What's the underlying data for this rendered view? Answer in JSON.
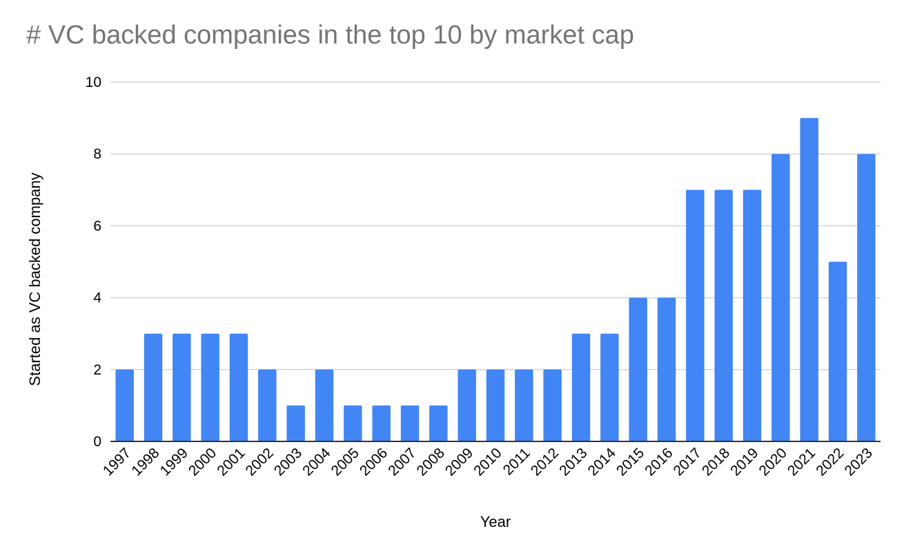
{
  "chart_data": {
    "type": "bar",
    "title": "# VC backed companies in the top 10 by market cap",
    "xlabel": "Year",
    "ylabel": "Started as VC backed company",
    "categories": [
      "1997",
      "1998",
      "1999",
      "2000",
      "2001",
      "2002",
      "2003",
      "2004",
      "2005",
      "2006",
      "2007",
      "2008",
      "2009",
      "2010",
      "2011",
      "2012",
      "2013",
      "2014",
      "2015",
      "2016",
      "2017",
      "2018",
      "2019",
      "2020",
      "2021",
      "2022",
      "2023"
    ],
    "values": [
      2,
      3,
      3,
      3,
      3,
      2,
      1,
      2,
      1,
      1,
      1,
      1,
      2,
      2,
      2,
      2,
      3,
      3,
      4,
      4,
      7,
      7,
      7,
      8,
      9,
      5,
      8
    ],
    "ylim": [
      0,
      10
    ],
    "yticks": [
      0,
      2,
      4,
      6,
      8,
      10
    ],
    "grid": true,
    "legend": "none",
    "colors": {
      "bar": "#4285f4",
      "grid": "#d3d3d3",
      "axis": "#333333",
      "title": "#757575"
    }
  }
}
